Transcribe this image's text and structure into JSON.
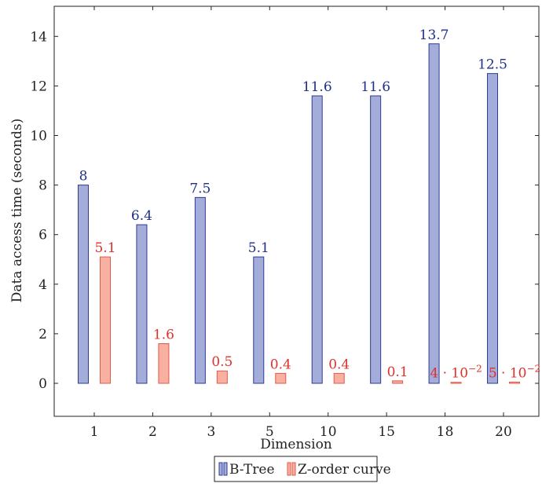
{
  "chart_data": {
    "type": "bar",
    "title": "",
    "xlabel": "Dimension",
    "ylabel": "Data access time (seconds)",
    "categories": [
      "1",
      "2",
      "3",
      "5",
      "10",
      "15",
      "18",
      "20"
    ],
    "ylim": [
      -1.3,
      15
    ],
    "yticks": [
      0,
      2,
      4,
      6,
      8,
      10,
      12,
      14
    ],
    "grid": false,
    "legend_position": "bottom-center",
    "series": [
      {
        "name": "B-Tree",
        "values": [
          8,
          6.4,
          7.5,
          5.1,
          11.6,
          11.6,
          13.7,
          12.5
        ],
        "labels": [
          "8",
          "6.4",
          "7.5",
          "5.1",
          "11.6",
          "11.6",
          "13.7",
          "12.5"
        ],
        "fill": "#a4acd9",
        "stroke": "#2c3c96",
        "label_color": "#1f2f8a"
      },
      {
        "name": "Z-order curve",
        "values": [
          5.1,
          1.6,
          0.5,
          0.4,
          0.4,
          0.1,
          0.04,
          0.05
        ],
        "labels": [
          "5.1",
          "1.6",
          "0.5",
          "0.4",
          "0.4",
          "0.1",
          "4 · 10",
          "5 · 10"
        ],
        "label_exponents": [
          "",
          "",
          "",
          "",
          "",
          "",
          "−2",
          "−2"
        ],
        "fill": "#f9b0a0",
        "stroke": "#e05a4a",
        "label_color": "#e0302a"
      }
    ]
  }
}
